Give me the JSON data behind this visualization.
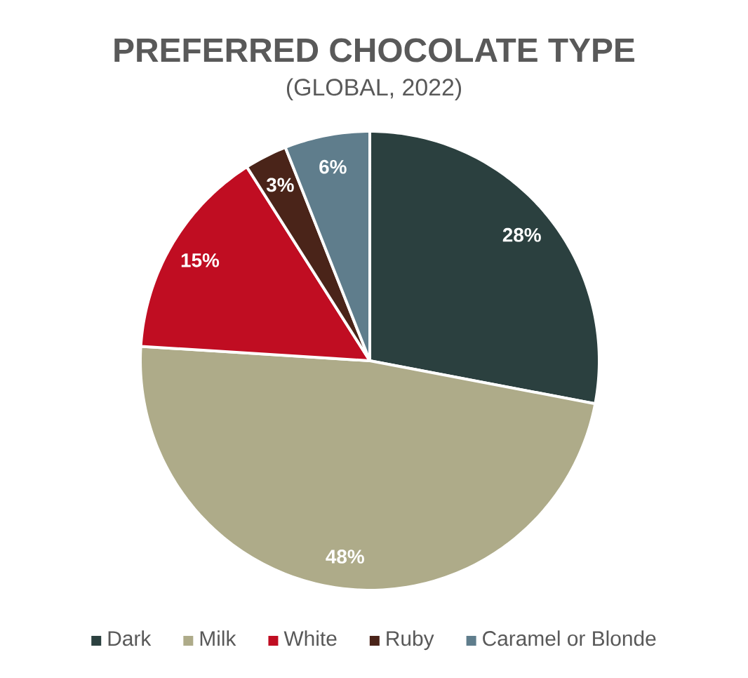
{
  "chart_data": {
    "type": "pie",
    "title": "PREFERRED CHOCOLATE TYPE",
    "subtitle": "(GLOBAL, 2022)",
    "categories": [
      "Dark",
      "Milk",
      "White",
      "Ruby",
      "Caramel or Blonde"
    ],
    "values": [
      28,
      48,
      15,
      3,
      6
    ],
    "colors": [
      "#2b403f",
      "#aeab89",
      "#c00d22",
      "#4a2419",
      "#5f7d8c"
    ],
    "value_labels": [
      "28%",
      "48%",
      "15%",
      "3%",
      "6%"
    ],
    "legend": "bottom"
  }
}
